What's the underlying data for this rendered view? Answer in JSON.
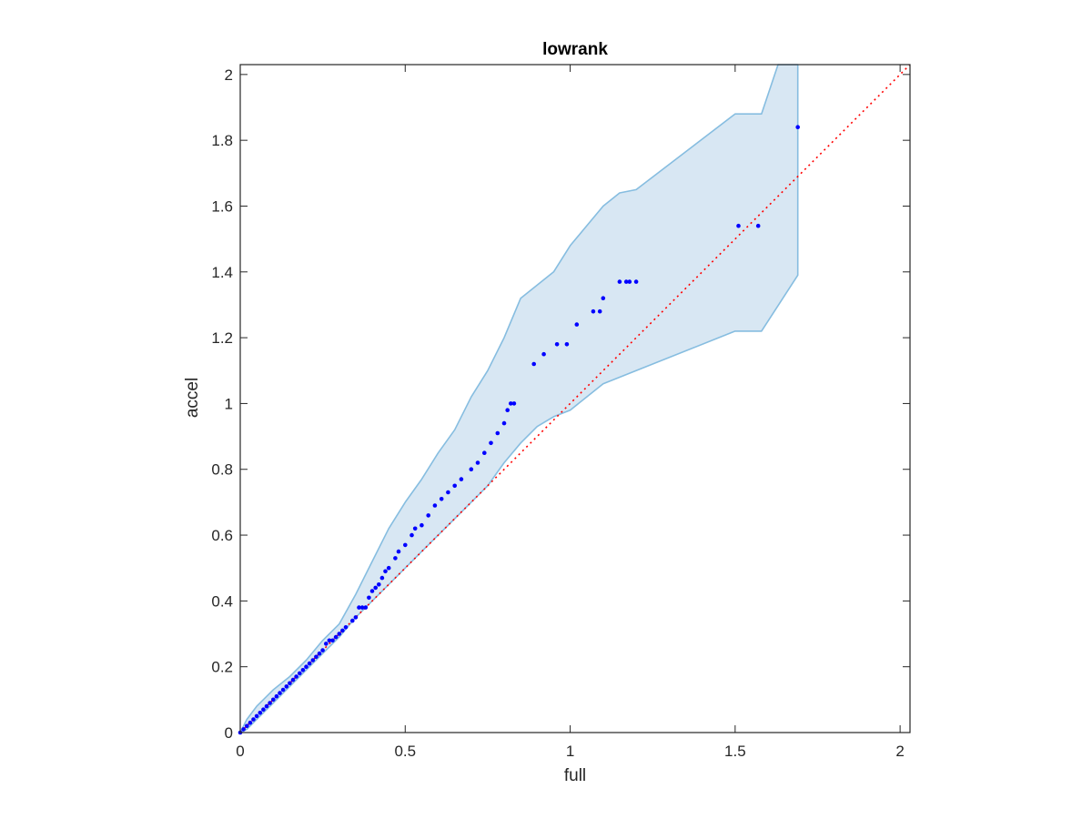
{
  "chart_data": {
    "type": "scatter",
    "title": "lowrank",
    "xlabel": "full",
    "ylabel": "accel",
    "xlim": [
      0,
      2.03
    ],
    "ylim": [
      0,
      2.03
    ],
    "xticks": [
      "0",
      "0.5",
      "1",
      "1.5",
      "2"
    ],
    "yticks": [
      "0",
      "0.2",
      "0.4",
      "0.6",
      "0.8",
      "1",
      "1.2",
      "1.4",
      "1.6",
      "1.8",
      "2"
    ],
    "xtick_values": [
      0,
      0.5,
      1,
      1.5,
      2
    ],
    "ytick_values": [
      0,
      0.2,
      0.4,
      0.6,
      0.8,
      1,
      1.2,
      1.4,
      1.6,
      1.8,
      2
    ],
    "grid": false,
    "colors": {
      "points": "#0000ff",
      "band_fill": "#d8e7f3",
      "band_edge": "#86bde0",
      "reference_line": "#ff0000",
      "axes": "#262626"
    },
    "reference_line": {
      "style": "dotted",
      "from": [
        0,
        0
      ],
      "to": [
        2.03,
        2.03
      ]
    },
    "band_upper": [
      [
        0,
        0
      ],
      [
        0.02,
        0.04
      ],
      [
        0.05,
        0.08
      ],
      [
        0.1,
        0.13
      ],
      [
        0.15,
        0.17
      ],
      [
        0.2,
        0.22
      ],
      [
        0.25,
        0.28
      ],
      [
        0.3,
        0.33
      ],
      [
        0.35,
        0.42
      ],
      [
        0.4,
        0.52
      ],
      [
        0.45,
        0.62
      ],
      [
        0.5,
        0.7
      ],
      [
        0.55,
        0.77
      ],
      [
        0.6,
        0.85
      ],
      [
        0.65,
        0.92
      ],
      [
        0.7,
        1.02
      ],
      [
        0.75,
        1.1
      ],
      [
        0.8,
        1.2
      ],
      [
        0.85,
        1.32
      ],
      [
        0.9,
        1.36
      ],
      [
        0.95,
        1.4
      ],
      [
        1.0,
        1.48
      ],
      [
        1.1,
        1.6
      ],
      [
        1.15,
        1.64
      ],
      [
        1.2,
        1.65
      ],
      [
        1.5,
        1.88
      ],
      [
        1.58,
        1.88
      ],
      [
        1.63,
        2.03
      ],
      [
        1.69,
        2.03
      ]
    ],
    "band_lower": [
      [
        1.69,
        1.39
      ],
      [
        1.58,
        1.22
      ],
      [
        1.5,
        1.22
      ],
      [
        1.2,
        1.1
      ],
      [
        1.1,
        1.06
      ],
      [
        1.0,
        0.98
      ],
      [
        0.95,
        0.96
      ],
      [
        0.9,
        0.93
      ],
      [
        0.85,
        0.88
      ],
      [
        0.8,
        0.82
      ],
      [
        0.75,
        0.75
      ],
      [
        0.7,
        0.7
      ],
      [
        0.65,
        0.65
      ],
      [
        0.6,
        0.6
      ],
      [
        0.55,
        0.55
      ],
      [
        0.5,
        0.5
      ],
      [
        0.45,
        0.45
      ],
      [
        0.4,
        0.4
      ],
      [
        0.35,
        0.35
      ],
      [
        0.3,
        0.29
      ],
      [
        0.25,
        0.24
      ],
      [
        0.2,
        0.19
      ],
      [
        0.15,
        0.14
      ],
      [
        0.1,
        0.09
      ],
      [
        0.05,
        0.04
      ],
      [
        0.02,
        0.01
      ],
      [
        0,
        0
      ]
    ],
    "points": [
      [
        0,
        0
      ],
      [
        0.01,
        0.01
      ],
      [
        0.02,
        0.02
      ],
      [
        0.03,
        0.03
      ],
      [
        0.04,
        0.04
      ],
      [
        0.05,
        0.05
      ],
      [
        0.06,
        0.06
      ],
      [
        0.07,
        0.07
      ],
      [
        0.08,
        0.08
      ],
      [
        0.09,
        0.09
      ],
      [
        0.1,
        0.1
      ],
      [
        0.11,
        0.11
      ],
      [
        0.12,
        0.12
      ],
      [
        0.13,
        0.13
      ],
      [
        0.14,
        0.14
      ],
      [
        0.15,
        0.15
      ],
      [
        0.16,
        0.16
      ],
      [
        0.17,
        0.17
      ],
      [
        0.18,
        0.18
      ],
      [
        0.19,
        0.19
      ],
      [
        0.2,
        0.2
      ],
      [
        0.21,
        0.21
      ],
      [
        0.22,
        0.22
      ],
      [
        0.23,
        0.23
      ],
      [
        0.24,
        0.24
      ],
      [
        0.25,
        0.25
      ],
      [
        0.26,
        0.27
      ],
      [
        0.27,
        0.28
      ],
      [
        0.28,
        0.28
      ],
      [
        0.29,
        0.29
      ],
      [
        0.3,
        0.3
      ],
      [
        0.31,
        0.31
      ],
      [
        0.32,
        0.32
      ],
      [
        0.34,
        0.34
      ],
      [
        0.35,
        0.35
      ],
      [
        0.36,
        0.38
      ],
      [
        0.37,
        0.38
      ],
      [
        0.38,
        0.38
      ],
      [
        0.39,
        0.41
      ],
      [
        0.4,
        0.43
      ],
      [
        0.41,
        0.44
      ],
      [
        0.42,
        0.45
      ],
      [
        0.43,
        0.47
      ],
      [
        0.44,
        0.49
      ],
      [
        0.45,
        0.5
      ],
      [
        0.47,
        0.53
      ],
      [
        0.48,
        0.55
      ],
      [
        0.5,
        0.57
      ],
      [
        0.52,
        0.6
      ],
      [
        0.53,
        0.62
      ],
      [
        0.55,
        0.63
      ],
      [
        0.57,
        0.66
      ],
      [
        0.59,
        0.69
      ],
      [
        0.61,
        0.71
      ],
      [
        0.63,
        0.73
      ],
      [
        0.65,
        0.75
      ],
      [
        0.67,
        0.77
      ],
      [
        0.7,
        0.8
      ],
      [
        0.72,
        0.82
      ],
      [
        0.74,
        0.85
      ],
      [
        0.76,
        0.88
      ],
      [
        0.78,
        0.91
      ],
      [
        0.8,
        0.94
      ],
      [
        0.81,
        0.98
      ],
      [
        0.82,
        1.0
      ],
      [
        0.83,
        1.0
      ],
      [
        0.89,
        1.12
      ],
      [
        0.92,
        1.15
      ],
      [
        0.96,
        1.18
      ],
      [
        0.99,
        1.18
      ],
      [
        1.02,
        1.24
      ],
      [
        1.07,
        1.28
      ],
      [
        1.09,
        1.28
      ],
      [
        1.1,
        1.32
      ],
      [
        1.15,
        1.37
      ],
      [
        1.17,
        1.37
      ],
      [
        1.18,
        1.37
      ],
      [
        1.2,
        1.37
      ],
      [
        1.51,
        1.54
      ],
      [
        1.57,
        1.54
      ],
      [
        1.69,
        1.84
      ]
    ]
  }
}
